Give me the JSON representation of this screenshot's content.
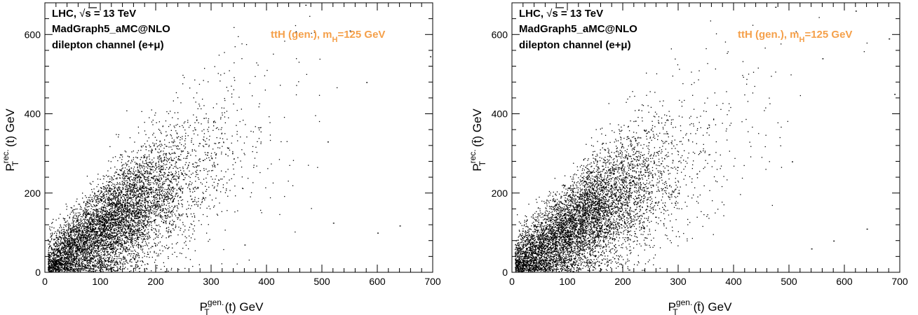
{
  "colors": {
    "points": "#000000",
    "legend": "#f5a04a",
    "frame": "#000000"
  },
  "chart_data": [
    {
      "type": "scatter",
      "title": "",
      "xlabel": {
        "base": "P",
        "sub": "T",
        "sup": "gen.",
        "tail": "(t) GeV"
      },
      "ylabel": {
        "base": "P",
        "sub": "T",
        "sup": "rec.",
        "tail": "(t) GeV"
      },
      "xlim": [
        0,
        700
      ],
      "ylim": [
        0,
        680
      ],
      "xticks": [
        0,
        100,
        200,
        300,
        400,
        500,
        600,
        700
      ],
      "yticks": [
        0,
        200,
        400,
        600
      ],
      "annotation": {
        "line1_pre": "LHC,",
        "line1_post": "= 13 TeV",
        "sqrt_arg": "s",
        "line2": "MadGraph5_aMC@NLO",
        "line3": "dilepton channel (e+μ)"
      },
      "legend": {
        "text_pre": "ttH  (gen.), m",
        "text_sub": "H",
        "text_post": "=125 GeV"
      },
      "grid": false,
      "correlation": {
        "mean_x": 150,
        "mean_y": 160,
        "n_points": 7000
      },
      "outliers": [
        [
          470,
          675
        ],
        [
          640,
          118
        ],
        [
          510,
          330
        ],
        [
          580,
          480
        ],
        [
          695,
          545
        ],
        [
          520,
          125
        ],
        [
          360,
          70
        ],
        [
          600,
          100
        ],
        [
          550,
          610
        ]
      ]
    },
    {
      "type": "scatter",
      "title": "",
      "xlabel": {
        "base": "P",
        "sub": "T",
        "sup": "gen.",
        "tail": "(t̄) GeV"
      },
      "ylabel": {
        "base": "P",
        "sub": "T",
        "sup": "rec.",
        "tail": "(t̄) GeV"
      },
      "xlim": [
        0,
        700
      ],
      "ylim": [
        0,
        680
      ],
      "xticks": [
        0,
        100,
        200,
        300,
        400,
        500,
        600,
        700
      ],
      "yticks": [
        0,
        200,
        400,
        600
      ],
      "annotation": {
        "line1_pre": "LHC,",
        "line1_post": "= 13 TeV",
        "sqrt_arg": "s",
        "line2": "MadGraph5_aMC@NLO",
        "line3": "dilepton channel (e+μ)"
      },
      "legend": {
        "text_pre": "ttH  (gen.), m",
        "text_sub": "H",
        "text_post": "=125 GeV"
      },
      "grid": false,
      "correlation": {
        "mean_x": 150,
        "mean_y": 160,
        "n_points": 7000
      },
      "outliers": [
        [
          475,
          670
        ],
        [
          620,
          660
        ],
        [
          680,
          590
        ],
        [
          560,
          540
        ],
        [
          640,
          110
        ],
        [
          580,
          80
        ],
        [
          505,
          280
        ],
        [
          690,
          450
        ],
        [
          540,
          60
        ]
      ]
    }
  ]
}
